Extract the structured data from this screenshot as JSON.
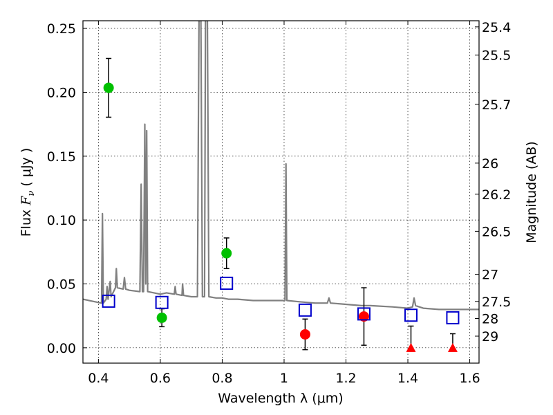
{
  "chart_data": {
    "type": "scatter",
    "xlabel": "Wavelength  λ (μm)",
    "ylabel_left_prefix": "Flux  ",
    "ylabel_left_var": "F",
    "ylabel_left_sub": "ν",
    "ylabel_left_unit": "  ( μJy )",
    "ylabel_right": "Magnitude (AB)",
    "xlim": [
      0.35,
      1.63
    ],
    "ylim": [
      -0.012,
      0.256
    ],
    "grid": true,
    "x_ticks": [
      {
        "value": 0.4,
        "label": "0.4"
      },
      {
        "value": 0.6,
        "label": "0.6"
      },
      {
        "value": 0.8,
        "label": "0.8"
      },
      {
        "value": 1.0,
        "label": "1"
      },
      {
        "value": 1.2,
        "label": "1.2"
      },
      {
        "value": 1.4,
        "label": "1.4"
      },
      {
        "value": 1.6,
        "label": "1.6"
      }
    ],
    "y_ticks": [
      {
        "value": 0.0,
        "label": "0.00"
      },
      {
        "value": 0.05,
        "label": "0.05"
      },
      {
        "value": 0.1,
        "label": "0.10"
      },
      {
        "value": 0.15,
        "label": "0.15"
      },
      {
        "value": 0.2,
        "label": "0.20"
      },
      {
        "value": 0.25,
        "label": "0.25"
      }
    ],
    "mag_ticks": [
      {
        "value": 25.4,
        "label": "25.4"
      },
      {
        "value": 25.5,
        "label": "25.5"
      },
      {
        "value": 25.7,
        "label": "25.7"
      },
      {
        "value": 26.0,
        "label": "26"
      },
      {
        "value": 26.2,
        "label": "26.2"
      },
      {
        "value": 26.5,
        "label": "26.5"
      },
      {
        "value": 27.0,
        "label": "27"
      },
      {
        "value": 27.5,
        "label": "27.5"
      },
      {
        "value": 28.0,
        "label": "28"
      },
      {
        "value": 29.0,
        "label": "29"
      }
    ],
    "model_spectrum": {
      "color": "#808080",
      "points": [
        [
          0.35,
          0.038
        ],
        [
          0.4,
          0.0355
        ],
        [
          0.41,
          0.035
        ],
        [
          0.413,
          0.105
        ],
        [
          0.416,
          0.035
        ],
        [
          0.425,
          0.038
        ],
        [
          0.428,
          0.048
        ],
        [
          0.431,
          0.038
        ],
        [
          0.438,
          0.052
        ],
        [
          0.441,
          0.04
        ],
        [
          0.455,
          0.047
        ],
        [
          0.458,
          0.062
        ],
        [
          0.461,
          0.047
        ],
        [
          0.48,
          0.046
        ],
        [
          0.484,
          0.055
        ],
        [
          0.488,
          0.046
        ],
        [
          0.5,
          0.045
        ],
        [
          0.534,
          0.044
        ],
        [
          0.538,
          0.128
        ],
        [
          0.542,
          0.044
        ],
        [
          0.546,
          0.044
        ],
        [
          0.55,
          0.175
        ],
        [
          0.553,
          0.05
        ],
        [
          0.556,
          0.17
        ],
        [
          0.559,
          0.044
        ],
        [
          0.6,
          0.042
        ],
        [
          0.62,
          0.043
        ],
        [
          0.645,
          0.042
        ],
        [
          0.648,
          0.048
        ],
        [
          0.651,
          0.042
        ],
        [
          0.67,
          0.041
        ],
        [
          0.672,
          0.05
        ],
        [
          0.675,
          0.041
        ],
        [
          0.7,
          0.04
        ],
        [
          0.72,
          0.04
        ],
        [
          0.725,
          0.26
        ],
        [
          0.731,
          0.26
        ],
        [
          0.736,
          0.04
        ],
        [
          0.743,
          0.04
        ],
        [
          0.746,
          0.26
        ],
        [
          0.752,
          0.26
        ],
        [
          0.757,
          0.04
        ],
        [
          0.78,
          0.039
        ],
        [
          0.8,
          0.039
        ],
        [
          0.82,
          0.038
        ],
        [
          0.85,
          0.038
        ],
        [
          0.9,
          0.037
        ],
        [
          0.95,
          0.037
        ],
        [
          0.97,
          0.037
        ],
        [
          1.0,
          0.037
        ],
        [
          1.003,
          0.037
        ],
        [
          1.006,
          0.144
        ],
        [
          1.009,
          0.037
        ],
        [
          1.05,
          0.036
        ],
        [
          1.1,
          0.035
        ],
        [
          1.14,
          0.035
        ],
        [
          1.145,
          0.039
        ],
        [
          1.15,
          0.035
        ],
        [
          1.2,
          0.034
        ],
        [
          1.25,
          0.033
        ],
        [
          1.28,
          0.033
        ],
        [
          1.35,
          0.032
        ],
        [
          1.4,
          0.031
        ],
        [
          1.415,
          0.032
        ],
        [
          1.42,
          0.039
        ],
        [
          1.425,
          0.033
        ],
        [
          1.45,
          0.031
        ],
        [
          1.5,
          0.03
        ],
        [
          1.55,
          0.03
        ],
        [
          1.63,
          0.03
        ]
      ]
    },
    "series": [
      {
        "marker": "circle",
        "color": "#00c000",
        "points": [
          {
            "x": 0.433,
            "y": 0.2035,
            "err": 0.023
          },
          {
            "x": 0.605,
            "y": 0.0235,
            "err": 0.007
          },
          {
            "x": 0.814,
            "y": 0.074,
            "err": 0.012
          }
        ]
      },
      {
        "marker": "circle",
        "color": "#ff0000",
        "points": [
          {
            "x": 1.068,
            "y": 0.0105,
            "err": 0.012
          },
          {
            "x": 1.258,
            "y": 0.0245,
            "err": 0.0225
          }
        ]
      },
      {
        "marker": "triangle",
        "color": "#ff0000",
        "points": [
          {
            "x": 1.41,
            "y": 0.0,
            "upper": 0.017
          },
          {
            "x": 1.545,
            "y": 0.0,
            "upper": 0.011
          }
        ]
      },
      {
        "marker": "open-square",
        "color": "#0000cc",
        "points": [
          {
            "x": 0.433,
            "y": 0.0365
          },
          {
            "x": 0.605,
            "y": 0.0355
          },
          {
            "x": 0.814,
            "y": 0.0505
          },
          {
            "x": 1.068,
            "y": 0.0295
          },
          {
            "x": 1.258,
            "y": 0.0265
          },
          {
            "x": 1.41,
            "y": 0.0255
          },
          {
            "x": 1.545,
            "y": 0.0235
          }
        ]
      }
    ]
  }
}
